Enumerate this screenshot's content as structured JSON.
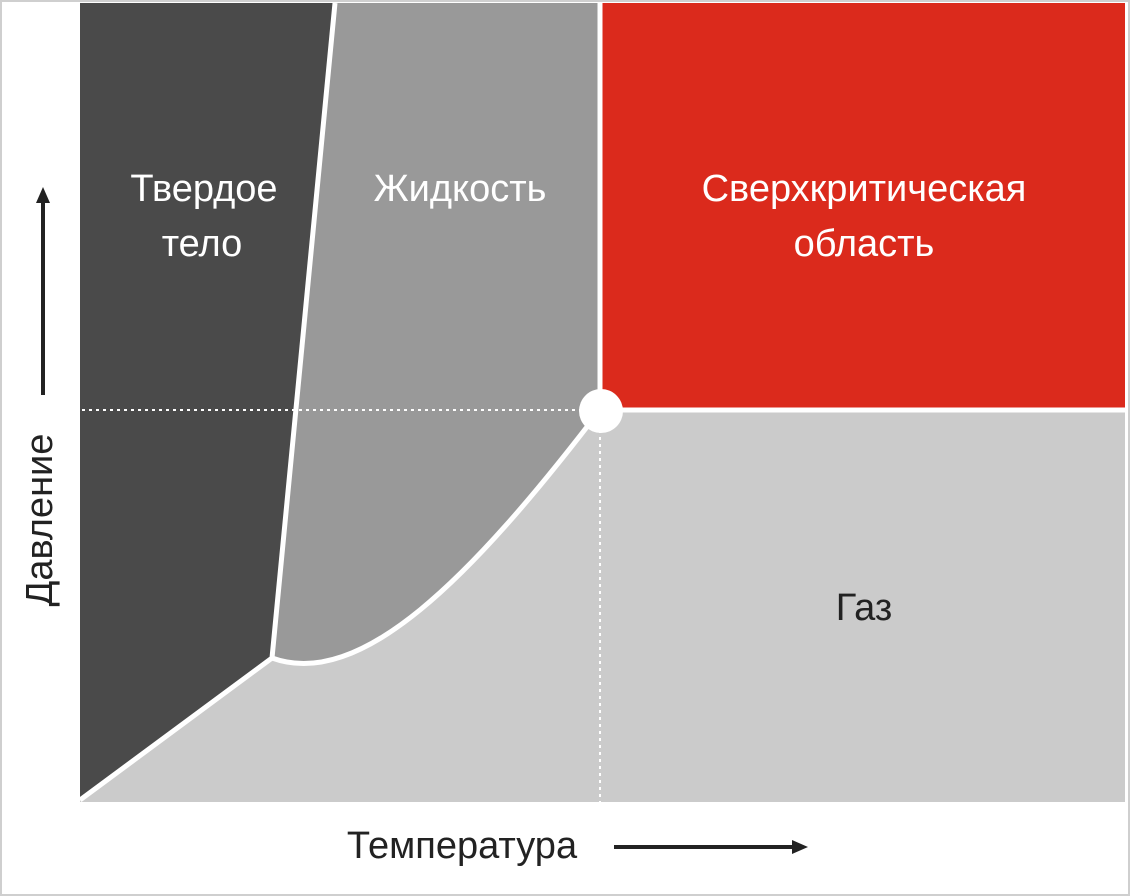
{
  "regions": {
    "solid": [
      "Твердое",
      "тело"
    ],
    "liquid": "Жидкость",
    "supercritical": [
      "Сверхкритическая",
      "область"
    ],
    "gas": "Газ"
  },
  "axes": {
    "x": "Температура",
    "y": "Давление"
  }
}
